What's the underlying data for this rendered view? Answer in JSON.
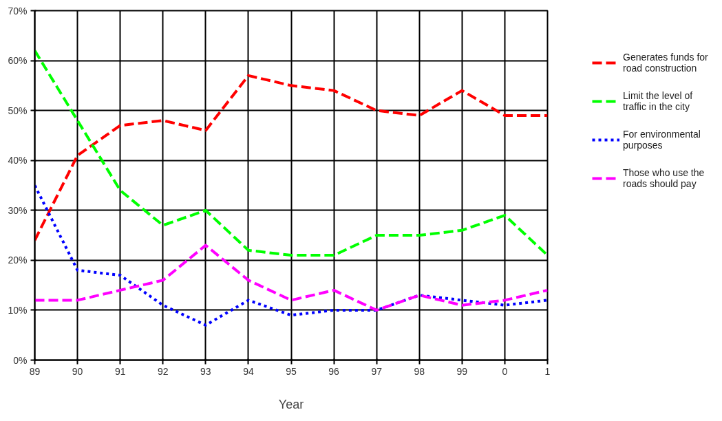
{
  "chart_data": {
    "type": "line",
    "xlabel": "Year",
    "categories": [
      "89",
      "90",
      "91",
      "92",
      "93",
      "94",
      "95",
      "96",
      "97",
      "98",
      "99",
      "0",
      "1"
    ],
    "ylim": [
      0,
      70
    ],
    "yticks": [
      {
        "value": 0,
        "label": "0%"
      },
      {
        "value": 10,
        "label": "10%"
      },
      {
        "value": 20,
        "label": "20%"
      },
      {
        "value": 30,
        "label": "30%"
      },
      {
        "value": 40,
        "label": "40%"
      },
      {
        "value": 50,
        "label": "50%"
      },
      {
        "value": 60,
        "label": "60%"
      },
      {
        "value": 70,
        "label": "70%"
      }
    ],
    "grid": true,
    "legend": "right",
    "marker": "none",
    "series": [
      {
        "name": "Generates funds for road construction",
        "color": "#ff0000",
        "line_style": "dashed",
        "values": [
          24,
          41,
          47,
          48,
          46,
          57,
          55,
          54,
          50,
          49,
          54,
          49,
          49
        ]
      },
      {
        "name": "Limit the level of traffic in the city",
        "color": "#00ff00",
        "line_style": "dashed",
        "values": [
          62,
          48,
          34,
          27,
          30,
          22,
          21,
          21,
          25,
          25,
          26,
          29,
          21
        ]
      },
      {
        "name": "For environmental purposes",
        "color": "#0000ff",
        "line_style": "dotted",
        "values": [
          35,
          18,
          17,
          11,
          7,
          12,
          9,
          10,
          10,
          13,
          12,
          11,
          12
        ]
      },
      {
        "name": "Those who use the roads should pay",
        "color": "#ff00ff",
        "line_style": "dashed",
        "values": [
          12,
          12,
          14,
          16,
          23,
          16,
          12,
          14,
          10,
          13,
          11,
          12,
          14
        ]
      }
    ]
  }
}
